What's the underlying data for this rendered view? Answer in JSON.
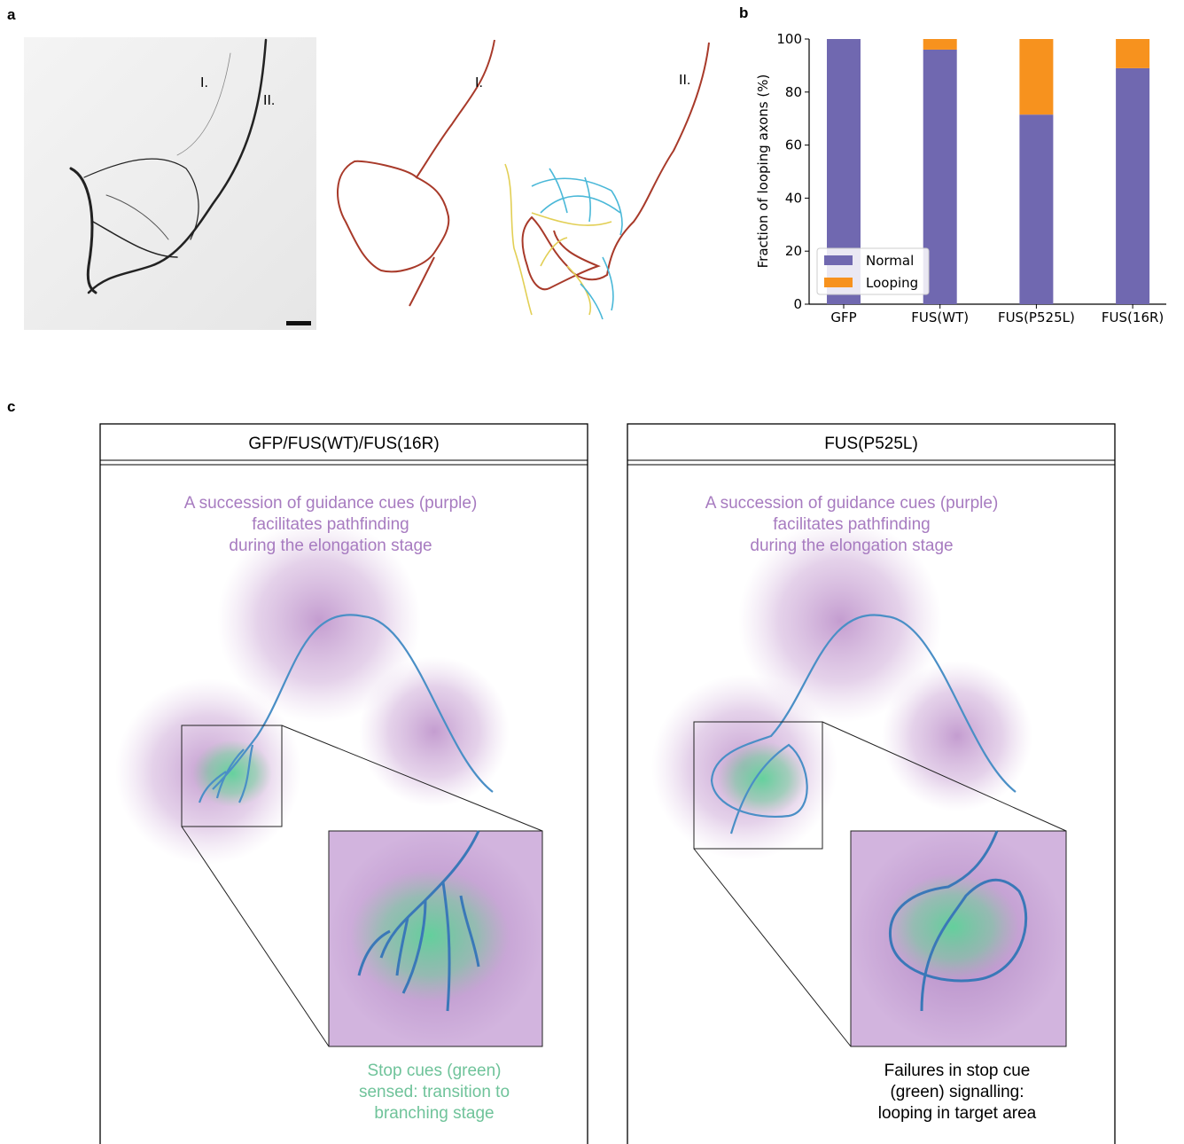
{
  "panel_labels": [
    "a",
    "b",
    "c"
  ],
  "panel_a": {
    "image_labels": [
      "I.",
      "II."
    ],
    "tracing_labels": [
      "I.",
      "II."
    ]
  },
  "chart_data": {
    "type": "stacked_bar",
    "ylabel": "Fraction of looping axons (%)",
    "categories": [
      "GFP",
      "FUS(WT)",
      "FUS(P525L)",
      "FUS(16R)"
    ],
    "series": [
      {
        "name": "Normal",
        "color": "#7068b0",
        "values": [
          100,
          96,
          71.5,
          89
        ]
      },
      {
        "name": "Looping",
        "color": "#f7921e",
        "values": [
          0,
          4,
          28.5,
          11
        ]
      }
    ],
    "ylim": [
      0,
      100
    ],
    "yticks": [
      0,
      20,
      40,
      60,
      80,
      100
    ],
    "legend": "lower left"
  },
  "panel_c": {
    "left": {
      "header": "GFP/FUS(WT)/FUS(16R)",
      "top_text": [
        "A succession of guidance cues (purple)",
        "facilitates pathfinding",
        "during the elongation stage"
      ],
      "bottom_text": [
        "Stop cues (green)",
        "sensed: transition to",
        "branching stage"
      ]
    },
    "right": {
      "header": "FUS(P525L)",
      "top_text": [
        "A succession of guidance cues (purple)",
        "facilitates pathfinding",
        "during the elongation stage"
      ],
      "bottom_text": [
        "Failures in stop cue",
        "(green) signalling:",
        "looping in target area"
      ]
    }
  }
}
